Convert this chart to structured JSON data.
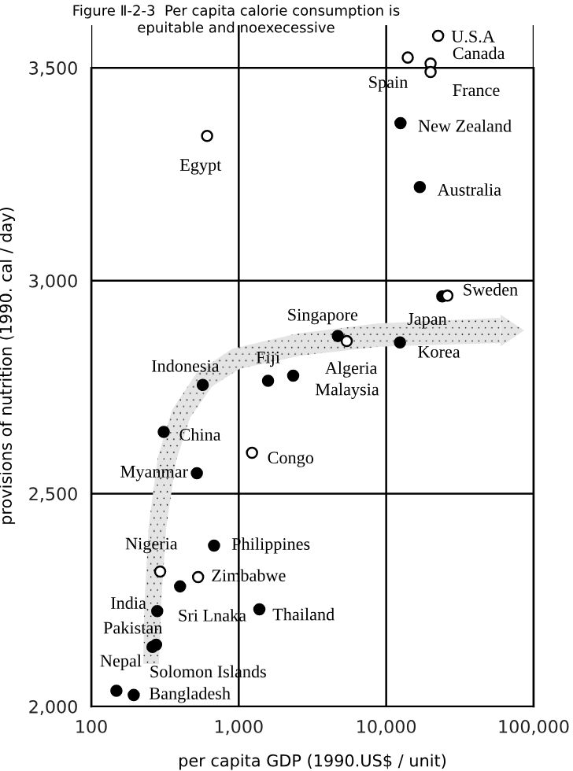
{
  "chart_data": {
    "type": "scatter",
    "title": "Figure Ⅱ-2-3  Per capita calorie consumption is\nepuitable and noexecessive",
    "xlabel": "per capita GDP (1990.US$ / unit)",
    "ylabel": "provisions of nutrition (1990. cal / day)",
    "log": "x",
    "grid": true,
    "marker": "circle",
    "xlim": [
      100,
      100000
    ],
    "xticks": [
      {
        "value": 100,
        "label": "100"
      },
      {
        "value": 1000,
        "label": "1,000"
      },
      {
        "value": 10000,
        "label": "10,000"
      },
      {
        "value": 100000,
        "label": "100,000"
      }
    ],
    "ylim": [
      2000,
      3600
    ],
    "yticks": [
      {
        "value": 2000,
        "label": "2,000"
      },
      {
        "value": 2500,
        "label": "2,500"
      },
      {
        "value": 3000,
        "label": "3,000"
      },
      {
        "value": 3500,
        "label": "3,500"
      }
    ],
    "series": [
      {
        "color": "#000000",
        "x": [
          12500,
          16900,
          24000,
          4700,
          12400,
          570,
          1580,
          2340,
          310,
          520,
          680,
          400,
          280,
          1380,
          260,
          275,
          148,
          194
        ],
        "values": [
          3370,
          3220,
          2963,
          2870,
          2855,
          2755,
          2765,
          2777,
          2645,
          2548,
          2378,
          2282,
          2224,
          2228,
          2140,
          2145,
          2037,
          2027
        ]
      },
      {
        "color": "#ffffff",
        "x": [
          22500,
          14000,
          20000,
          20000,
          610,
          26000,
          5400,
          1230,
          293,
          530
        ],
        "values": [
          3575,
          3524,
          3510,
          3490,
          3340,
          2965,
          2858,
          2596,
          2317,
          2304
        ]
      }
    ],
    "annotations": [
      {
        "text": "New Zealand",
        "x": 12500,
        "y": 3370
      },
      {
        "text": "Australia",
        "x": 16900,
        "y": 3220
      },
      {
        "text": "Japan",
        "x": 24000,
        "y": 2963
      },
      {
        "text": "Singapore",
        "x": 4700,
        "y": 2870
      },
      {
        "text": "Korea",
        "x": 12400,
        "y": 2855
      },
      {
        "text": "Indonesia",
        "x": 570,
        "y": 2755
      },
      {
        "text": "Fiji",
        "x": 1580,
        "y": 2765
      },
      {
        "text": "Malaysia",
        "x": 2340,
        "y": 2777
      },
      {
        "text": "China",
        "x": 310,
        "y": 2645
      },
      {
        "text": "Myanmar",
        "x": 520,
        "y": 2548
      },
      {
        "text": "Philippines",
        "x": 680,
        "y": 2378
      },
      {
        "text": "Sri Lnaka",
        "x": 400,
        "y": 2282
      },
      {
        "text": "India",
        "x": 280,
        "y": 2224
      },
      {
        "text": "Thailand",
        "x": 1380,
        "y": 2228
      },
      {
        "text": "Pakistan",
        "x": 260,
        "y": 2140
      },
      {
        "text": "Solomon Islands",
        "x": 275,
        "y": 2145
      },
      {
        "text": "Nepal",
        "x": 148,
        "y": 2037
      },
      {
        "text": "Bangladesh",
        "x": 194,
        "y": 2027
      },
      {
        "text": "U.S.A",
        "x": 22500,
        "y": 3575
      },
      {
        "text": "Spain",
        "x": 14000,
        "y": 3524
      },
      {
        "text": "Canada",
        "x": 20000,
        "y": 3510
      },
      {
        "text": "France",
        "x": 20000,
        "y": 3490
      },
      {
        "text": "Egypt",
        "x": 610,
        "y": 3340
      },
      {
        "text": "Sweden",
        "x": 26000,
        "y": 2965
      },
      {
        "text": "Algeria",
        "x": 5400,
        "y": 2858
      },
      {
        "text": "Congo",
        "x": 1230,
        "y": 2596
      },
      {
        "text": "Nigeria",
        "x": 293,
        "y": 2317
      },
      {
        "text": "Zimbabwe",
        "x": 530,
        "y": 2304
      }
    ]
  }
}
